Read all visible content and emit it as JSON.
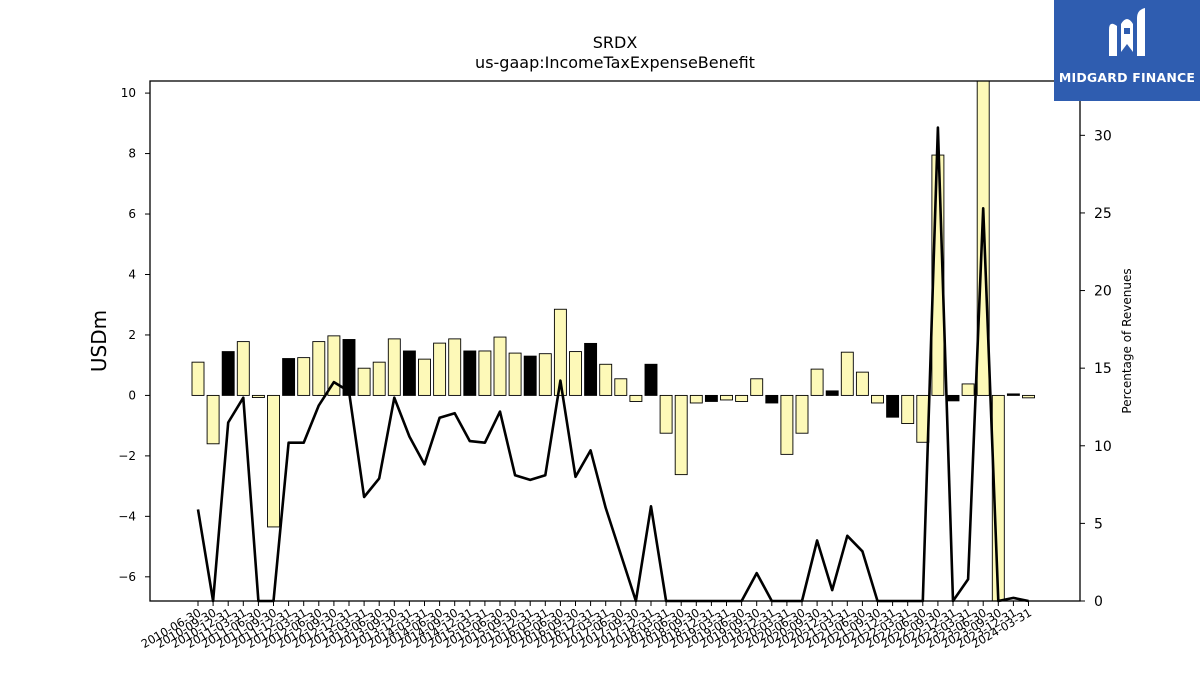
{
  "brand": {
    "name": "MIDGARD FINANCE",
    "logo_icon": "midgard-logo-icon",
    "color": "#2f5db0"
  },
  "chart_data": {
    "type": "bar",
    "title": "SRDX",
    "subtitle": "us-gaap:IncomeTaxExpenseBenefit",
    "ylabel": "USDm",
    "y2label": "Percentage of Revenues",
    "ylim": [
      -6.8,
      10.4
    ],
    "y2lim": [
      0,
      33.5
    ],
    "yticks": [
      -6,
      -4,
      -2,
      0,
      2,
      4,
      6,
      8,
      10
    ],
    "y2ticks": [
      0,
      5,
      10,
      15,
      20,
      25,
      30
    ],
    "grid": false,
    "colors": {
      "bar_light": "#fdf9b8",
      "bar_dark": "#000000",
      "line": "#000000"
    },
    "categories": [
      "2010-06-30",
      "2010-09-30",
      "2010-12-31",
      "2011-03-31",
      "2011-06-30",
      "2011-09-30",
      "2011-12-31",
      "2012-03-31",
      "2012-06-30",
      "2012-09-30",
      "2012-12-31",
      "2013-03-31",
      "2013-06-30",
      "2013-09-30",
      "2013-12-31",
      "2014-03-31",
      "2014-06-30",
      "2014-09-30",
      "2014-12-31",
      "2015-03-31",
      "2015-06-30",
      "2015-09-30",
      "2015-12-31",
      "2016-03-31",
      "2016-06-30",
      "2016-09-30",
      "2016-12-31",
      "2017-03-31",
      "2017-06-30",
      "2017-09-30",
      "2017-12-31",
      "2018-03-31",
      "2018-06-30",
      "2018-09-30",
      "2018-12-31",
      "2019-03-31",
      "2019-06-30",
      "2019-09-30",
      "2019-12-31",
      "2020-03-31",
      "2020-06-30",
      "2020-09-30",
      "2020-12-31",
      "2021-03-31",
      "2021-06-30",
      "2021-09-30",
      "2021-12-31",
      "2022-03-31",
      "2022-06-30",
      "2022-09-30",
      "2022-12-31",
      "2023-03-31",
      "2023-06-30",
      "2023-09-30",
      "2023-12-31",
      "2024-03-31"
    ],
    "values": [
      1.1,
      -1.6,
      1.45,
      1.78,
      -0.07,
      -4.35,
      1.22,
      1.25,
      1.78,
      1.97,
      1.85,
      0.9,
      1.1,
      1.87,
      1.47,
      1.2,
      1.73,
      1.87,
      1.47,
      1.47,
      1.93,
      1.4,
      1.3,
      1.38,
      2.85,
      1.45,
      1.72,
      1.03,
      0.55,
      -0.2,
      1.03,
      -1.25,
      -2.62,
      -0.25,
      -0.2,
      -0.15,
      -0.2,
      0.55,
      -0.25,
      -1.95,
      -1.25,
      0.87,
      0.15,
      1.43,
      0.77,
      -0.25,
      -0.72,
      -0.93,
      -1.55,
      7.95,
      -0.18,
      0.38,
      10.5,
      -7.0,
      0.05,
      -0.08
    ],
    "bar_shade": [
      "light",
      "light",
      "dark",
      "light",
      "light",
      "light",
      "dark",
      "light",
      "light",
      "light",
      "dark",
      "light",
      "light",
      "light",
      "dark",
      "light",
      "light",
      "light",
      "dark",
      "light",
      "light",
      "light",
      "dark",
      "light",
      "light",
      "light",
      "dark",
      "light",
      "light",
      "light",
      "dark",
      "light",
      "light",
      "light",
      "dark",
      "light",
      "light",
      "light",
      "dark",
      "light",
      "light",
      "light",
      "dark",
      "light",
      "light",
      "light",
      "dark",
      "light",
      "light",
      "light",
      "dark",
      "light",
      "light",
      "light",
      "dark",
      "light"
    ],
    "pct_of_revenues": [
      5.9,
      -0.5,
      11.5,
      13.1,
      -0.5,
      -0.5,
      10.2,
      10.2,
      12.6,
      14.1,
      13.5,
      6.7,
      7.9,
      13.1,
      10.6,
      8.8,
      11.8,
      12.1,
      10.3,
      10.2,
      12.2,
      8.1,
      7.8,
      8.1,
      14.2,
      8.0,
      9.7,
      6.0,
      3.0,
      -1.0,
      6.1,
      -1.0,
      -1.0,
      -1.0,
      -1.0,
      -1.0,
      -1.0,
      1.8,
      -1.0,
      -1.0,
      -1.0,
      3.9,
      0.7,
      4.2,
      3.2,
      -1.0,
      -1.0,
      -1.0,
      -1.0,
      30.5,
      -1.0,
      1.4,
      25.3,
      -1.0,
      0.2,
      -0.2
    ]
  }
}
